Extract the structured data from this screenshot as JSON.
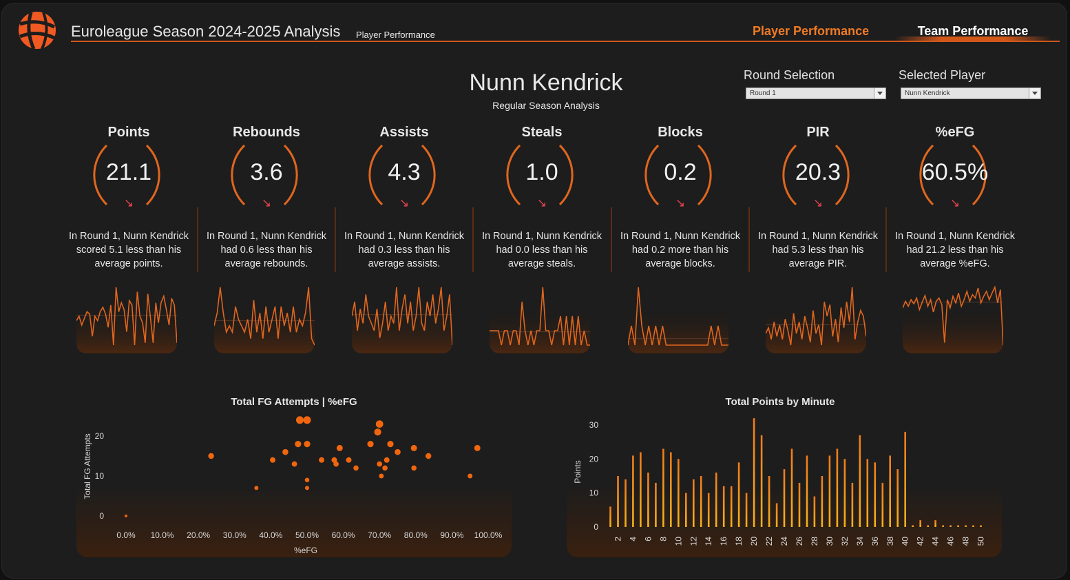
{
  "header": {
    "title": "Euroleague Season 2024-2025 Analysis",
    "subtitle": "Player Performance",
    "logo_icon": "euroleague-ball-icon",
    "nav": {
      "player_tab": "Player Performance",
      "team_tab": "Team Performance"
    },
    "accent_color": "#d2581a"
  },
  "player": {
    "name": "Nunn  Kendrick",
    "subtitle": "Regular Season Analysis"
  },
  "filters": {
    "round_label": "Round Selection",
    "round_value": "Round 1",
    "player_label": "Selected Player",
    "player_value": "Nunn  Kendrick"
  },
  "kpis": [
    {
      "title": "Points",
      "value": "21.1",
      "arrow": "↘",
      "text": "In Round 1, Nunn  Kendrick scored 5.1 less than his average points.",
      "trend": [
        15,
        17,
        13,
        16,
        19,
        18,
        8,
        17,
        15,
        19,
        21,
        18,
        12,
        22,
        4,
        30,
        19,
        23,
        20,
        10,
        24,
        22,
        4,
        28,
        17,
        14,
        5,
        27,
        16,
        5,
        23,
        14,
        23,
        26,
        20,
        13,
        25,
        22,
        5
      ]
    },
    {
      "title": "Rebounds",
      "value": "3.6",
      "arrow": "↘",
      "text": "In Round 1, Nunn  Kendrick had 0.6 less than his average rebounds.",
      "trend": [
        3,
        5,
        9,
        5,
        2,
        3,
        2,
        6,
        4,
        3,
        2,
        4,
        1,
        7,
        2,
        5,
        1,
        6,
        2,
        4,
        6,
        1,
        6,
        3,
        5,
        2,
        6,
        2,
        4,
        3,
        5,
        9,
        1,
        0
      ]
    },
    {
      "title": "Assists",
      "value": "4.3",
      "arrow": "↘",
      "text": "In Round 1, Nunn  Kendrick had 0.3 less than his average assists.",
      "trend": [
        4,
        6,
        2,
        5,
        3,
        7,
        4,
        3,
        2,
        5,
        1,
        3,
        6,
        2,
        4,
        3,
        8,
        2,
        5,
        7,
        3,
        6,
        2,
        4,
        8,
        3,
        2,
        6,
        4,
        7,
        3,
        5,
        8,
        2,
        4,
        7,
        0
      ]
    },
    {
      "title": "Steals",
      "value": "1.0",
      "arrow": "↘",
      "text": "In Round 1, Nunn  Kendrick had 0.0 less than his average steals.",
      "trend": [
        1,
        1,
        1,
        1,
        0,
        1,
        1,
        0,
        1,
        1,
        0,
        3,
        1,
        0,
        1,
        0,
        1,
        1,
        4,
        1,
        1,
        0,
        1,
        1,
        2,
        0,
        2,
        0,
        2,
        0,
        2,
        0,
        1,
        0,
        0
      ]
    },
    {
      "title": "Blocks",
      "value": "0.2",
      "arrow": "↘",
      "text": "In Round 1, Nunn  Kendrick had 0.2 more than his average blocks.",
      "trend": [
        0,
        1,
        0,
        3,
        1,
        0,
        1,
        0,
        1,
        0,
        1,
        0,
        0,
        0,
        0,
        0,
        0,
        0,
        0,
        0,
        0,
        0,
        0,
        0,
        1,
        0,
        1,
        0,
        0,
        0
      ]
    },
    {
      "title": "PIR",
      "value": "20.3",
      "arrow": "↘",
      "text": "In Round 1, Nunn  Kendrick had 5.3 less than his average PIR.",
      "trend": [
        14,
        16,
        12,
        18,
        13,
        17,
        12,
        19,
        15,
        10,
        21,
        14,
        18,
        12,
        20,
        16,
        11,
        22,
        14,
        17,
        10,
        25,
        20,
        24,
        13,
        19,
        11,
        23,
        16,
        25,
        18,
        30,
        12,
        18,
        22,
        20,
        13
      ]
    },
    {
      "title": "%eFG",
      "value": "60.5%",
      "arrow": "↘",
      "text": "In Round 1, Nunn  Kendrick had 21.2 less than his average %eFG.",
      "trend": [
        50,
        58,
        52,
        60,
        55,
        62,
        48,
        57,
        65,
        52,
        60,
        45,
        58,
        62,
        54,
        8,
        60,
        50,
        64,
        56,
        68,
        52,
        60,
        70,
        58,
        66,
        62,
        74,
        56,
        64,
        70,
        60,
        68,
        75,
        56,
        72,
        5
      ]
    }
  ],
  "scatter_title": "Total FG Attempts | %eFG",
  "bars_title": "Total Points by Minute",
  "chart_data": [
    {
      "type": "scatter",
      "title": "Total FG Attempts | %eFG",
      "xlabel": "%eFG",
      "ylabel": "Total FG Attempts",
      "xlim": [
        0,
        100
      ],
      "ylim": [
        0,
        25
      ],
      "x_ticks": [
        "0.0%",
        "10.0%",
        "20.0%",
        "30.0%",
        "40.0%",
        "50.0%",
        "60.0%",
        "70.0%",
        "80.0%",
        "90.0%",
        "100.0%"
      ],
      "y_ticks": [
        "0",
        "10",
        "20"
      ],
      "points": [
        {
          "x": 0,
          "y": 0
        },
        {
          "x": 23.5,
          "y": 15
        },
        {
          "x": 36,
          "y": 7
        },
        {
          "x": 40.5,
          "y": 14
        },
        {
          "x": 44,
          "y": 16
        },
        {
          "x": 46.5,
          "y": 13
        },
        {
          "x": 47.5,
          "y": 18
        },
        {
          "x": 48,
          "y": 24
        },
        {
          "x": 50,
          "y": 24
        },
        {
          "x": 50,
          "y": 18
        },
        {
          "x": 50,
          "y": 9
        },
        {
          "x": 50,
          "y": 7
        },
        {
          "x": 54,
          "y": 14
        },
        {
          "x": 57.5,
          "y": 14
        },
        {
          "x": 58,
          "y": 13
        },
        {
          "x": 59,
          "y": 17
        },
        {
          "x": 61.5,
          "y": 14
        },
        {
          "x": 63.5,
          "y": 12
        },
        {
          "x": 67.5,
          "y": 18
        },
        {
          "x": 69.5,
          "y": 21
        },
        {
          "x": 70,
          "y": 23
        },
        {
          "x": 70,
          "y": 13
        },
        {
          "x": 70.5,
          "y": 10
        },
        {
          "x": 71.5,
          "y": 12
        },
        {
          "x": 72,
          "y": 14
        },
        {
          "x": 73,
          "y": 18
        },
        {
          "x": 75,
          "y": 16
        },
        {
          "x": 79.5,
          "y": 17
        },
        {
          "x": 79.5,
          "y": 12
        },
        {
          "x": 83.5,
          "y": 15
        },
        {
          "x": 95,
          "y": 10
        },
        {
          "x": 97,
          "y": 17
        }
      ]
    },
    {
      "type": "bar",
      "title": "Total Points by Minute",
      "ylabel": "Points",
      "ylim": [
        0,
        33
      ],
      "y_ticks": [
        "0",
        "10",
        "20",
        "30"
      ],
      "categories": [
        1,
        2,
        3,
        4,
        5,
        6,
        7,
        8,
        9,
        10,
        11,
        12,
        13,
        14,
        15,
        16,
        17,
        18,
        19,
        20,
        21,
        22,
        23,
        24,
        25,
        26,
        27,
        28,
        29,
        30,
        31,
        32,
        33,
        34,
        35,
        36,
        37,
        38,
        39,
        40,
        41,
        42,
        43,
        44,
        45,
        46,
        47,
        48,
        49,
        50
      ],
      "x_tick_labels": [
        "2",
        "4",
        "6",
        "8",
        "10",
        "12",
        "14",
        "16",
        "18",
        "20",
        "22",
        "24",
        "26",
        "28",
        "30",
        "32",
        "34",
        "36",
        "38",
        "40",
        "42",
        "44",
        "46",
        "48",
        "50"
      ],
      "values": [
        6,
        15,
        14,
        21,
        22,
        16,
        13,
        23,
        22,
        20,
        10,
        14,
        15,
        10,
        16,
        12,
        12,
        19,
        10,
        32,
        27,
        15,
        7,
        17,
        23,
        13,
        21,
        9,
        15,
        21,
        23,
        20,
        13,
        27,
        20,
        19,
        13,
        21,
        17,
        28,
        0,
        2,
        0,
        2,
        0,
        0,
        0,
        0,
        0,
        0
      ]
    }
  ]
}
